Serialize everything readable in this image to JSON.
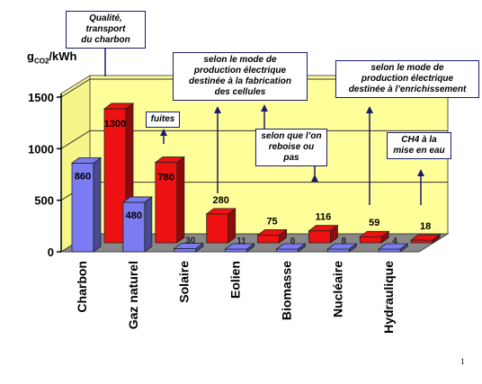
{
  "chart_data": {
    "type": "bar",
    "ylabel_parts": [
      "g",
      "CO2",
      "/kWh"
    ],
    "ylim": [
      0,
      1500
    ],
    "yticks": [
      0,
      500,
      1000,
      1500
    ],
    "categories": [
      "Charbon",
      "Gaz naturel",
      "Solaire",
      "Eolien",
      "Biomasse",
      "Nucléaire",
      "Hydraulique"
    ],
    "series": [
      {
        "color": "#7b7bf2",
        "values": [
          860,
          480,
          30,
          11,
          0,
          8,
          4
        ]
      },
      {
        "color": "#ee1111",
        "values": [
          1300,
          780,
          280,
          75,
          116,
          59,
          18
        ]
      }
    ],
    "grid": true,
    "wall_color": "#ffff99",
    "floor_color": "#888888"
  },
  "annotations": [
    {
      "id": "charbon",
      "lines": [
        "Qualité, transport",
        "du charbon"
      ]
    },
    {
      "id": "fuites",
      "lines": [
        "fuites"
      ]
    },
    {
      "id": "cellules",
      "lines": [
        "selon le mode de",
        "production électrique",
        "destinée à la fabrication",
        "des cellules"
      ]
    },
    {
      "id": "reboise",
      "lines": [
        "selon que l’on",
        "reboise ou pas"
      ]
    },
    {
      "id": "enrichissement",
      "lines": [
        "selon le mode de",
        "production électrique",
        "destinée à l’enrichissement"
      ]
    },
    {
      "id": "ch4",
      "lines": [
        "CH4 à la",
        "mise en eau"
      ]
    }
  ],
  "page_number": "1"
}
